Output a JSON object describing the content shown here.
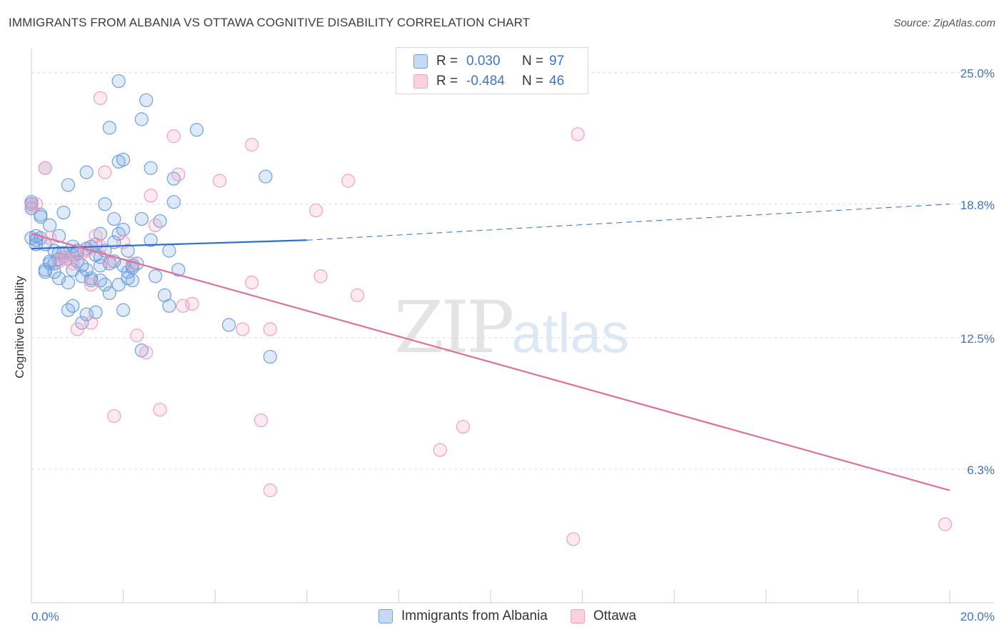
{
  "title": "IMMIGRANTS FROM ALBANIA VS OTTAWA COGNITIVE DISABILITY CORRELATION CHART",
  "source": "Source: ZipAtlas.com",
  "watermark": {
    "zip": "ZIP",
    "atlas": "atlas"
  },
  "legend": {
    "rows": [
      {
        "r_label": "R =",
        "r_value": "0.030",
        "n_label": "N =",
        "n_value": "97"
      },
      {
        "r_label": "R =",
        "r_value": "-0.484",
        "n_label": "N =",
        "n_value": "46"
      }
    ]
  },
  "bottom_legend": [
    "Immigrants from Albania",
    "Ottawa"
  ],
  "chart_data": {
    "type": "scatter",
    "title": "IMMIGRANTS FROM ALBANIA VS OTTAWA COGNITIVE DISABILITY CORRELATION CHART",
    "xlabel": "",
    "ylabel": "Cognitive Disability",
    "xlim": [
      0,
      20
    ],
    "ylim": [
      0,
      26
    ],
    "x_tick_labels": [
      "0.0%",
      "20.0%"
    ],
    "y_ticks": [
      6.3,
      12.5,
      18.8,
      25.0
    ],
    "y_tick_labels": [
      "6.3%",
      "12.5%",
      "18.8%",
      "25.0%"
    ],
    "grid": true,
    "legend_position": "top-center",
    "colors": {
      "blue": "#6f9fe0",
      "blue_line": "#2d6fce",
      "pink": "#f0a0bb",
      "pink_line": "#e0709a"
    },
    "series": [
      {
        "name": "Immigrants from Albania",
        "color": "#6f9fe0",
        "trend": {
          "x": [
            0,
            6
          ],
          "y": [
            16.7,
            17.1
          ],
          "dashed_to": [
            20,
            18.8
          ]
        },
        "points": [
          [
            0.0,
            18.9
          ],
          [
            0.0,
            18.8
          ],
          [
            0.1,
            17.3
          ],
          [
            0.1,
            17.1
          ],
          [
            0.2,
            18.2
          ],
          [
            0.3,
            20.5
          ],
          [
            0.4,
            17.8
          ],
          [
            0.5,
            16.6
          ],
          [
            0.6,
            16.2
          ],
          [
            0.7,
            16.5
          ],
          [
            0.5,
            15.6
          ],
          [
            0.3,
            15.6
          ],
          [
            0.4,
            16.0
          ],
          [
            0.6,
            15.3
          ],
          [
            0.8,
            15.1
          ],
          [
            0.9,
            16.8
          ],
          [
            1.0,
            16.5
          ],
          [
            1.1,
            15.9
          ],
          [
            1.2,
            15.7
          ],
          [
            1.3,
            15.3
          ],
          [
            1.4,
            16.4
          ],
          [
            1.5,
            15.9
          ],
          [
            1.6,
            15.0
          ],
          [
            1.7,
            16.0
          ],
          [
            1.8,
            17.0
          ],
          [
            1.9,
            17.4
          ],
          [
            2.0,
            15.9
          ],
          [
            2.1,
            15.3
          ],
          [
            2.2,
            15.2
          ],
          [
            2.3,
            16.0
          ],
          [
            2.6,
            17.1
          ],
          [
            2.7,
            15.4
          ],
          [
            0.8,
            19.7
          ],
          [
            0.7,
            18.4
          ],
          [
            1.2,
            20.3
          ],
          [
            1.5,
            17.4
          ],
          [
            1.6,
            18.8
          ],
          [
            1.8,
            18.1
          ],
          [
            1.9,
            20.8
          ],
          [
            2.1,
            16.6
          ],
          [
            2.2,
            15.8
          ],
          [
            2.4,
            18.1
          ],
          [
            2.6,
            20.5
          ],
          [
            2.8,
            18.0
          ],
          [
            3.1,
            18.9
          ],
          [
            3.0,
            16.6
          ],
          [
            3.2,
            15.7
          ],
          [
            1.7,
            14.6
          ],
          [
            1.9,
            15.0
          ],
          [
            2.0,
            13.8
          ],
          [
            1.4,
            13.7
          ],
          [
            1.2,
            13.6
          ],
          [
            0.9,
            14.0
          ],
          [
            0.8,
            13.8
          ],
          [
            1.1,
            13.2
          ],
          [
            1.5,
            15.2
          ],
          [
            2.5,
            23.7
          ],
          [
            2.4,
            22.8
          ],
          [
            1.7,
            22.4
          ],
          [
            1.9,
            24.6
          ],
          [
            3.6,
            22.3
          ],
          [
            2.0,
            20.9
          ],
          [
            3.1,
            20.0
          ],
          [
            5.1,
            20.1
          ],
          [
            2.4,
            11.9
          ],
          [
            3.0,
            14.0
          ],
          [
            2.9,
            14.5
          ],
          [
            4.3,
            13.1
          ],
          [
            5.2,
            11.6
          ],
          [
            2.1,
            15.6
          ],
          [
            0.3,
            16.9
          ],
          [
            1.0,
            16.1
          ],
          [
            0.2,
            17.2
          ],
          [
            0.1,
            16.9
          ],
          [
            0.9,
            15.7
          ],
          [
            1.3,
            16.8
          ],
          [
            1.6,
            16.6
          ],
          [
            2.0,
            17.6
          ],
          [
            0.6,
            17.3
          ],
          [
            0.4,
            16.1
          ],
          [
            0.7,
            16.3
          ],
          [
            1.1,
            15.4
          ],
          [
            1.8,
            16.1
          ],
          [
            0.5,
            16.0
          ],
          [
            1.0,
            16.6
          ],
          [
            0.8,
            16.2
          ],
          [
            1.4,
            16.9
          ],
          [
            2.2,
            15.9
          ],
          [
            0.3,
            15.7
          ],
          [
            0.9,
            16.4
          ],
          [
            1.2,
            16.7
          ],
          [
            0.6,
            16.5
          ],
          [
            1.5,
            16.3
          ],
          [
            0.2,
            18.3
          ],
          [
            0.0,
            17.2
          ],
          [
            0.0,
            18.6
          ],
          [
            1.3,
            15.2
          ]
        ]
      },
      {
        "name": "Ottawa",
        "color": "#f0a0bb",
        "trend": {
          "x": [
            0,
            20
          ],
          "y": [
            17.4,
            5.3
          ]
        },
        "points": [
          [
            0.0,
            18.7
          ],
          [
            0.1,
            18.8
          ],
          [
            0.3,
            20.5
          ],
          [
            0.4,
            17.2
          ],
          [
            0.7,
            16.3
          ],
          [
            0.9,
            16.0
          ],
          [
            1.1,
            16.5
          ],
          [
            1.4,
            17.3
          ],
          [
            1.3,
            15.0
          ],
          [
            1.5,
            16.8
          ],
          [
            1.7,
            16.1
          ],
          [
            2.0,
            17.0
          ],
          [
            2.2,
            16.0
          ],
          [
            2.7,
            17.8
          ],
          [
            1.5,
            23.8
          ],
          [
            1.6,
            20.3
          ],
          [
            2.6,
            19.2
          ],
          [
            3.2,
            20.2
          ],
          [
            3.1,
            22.0
          ],
          [
            4.1,
            19.9
          ],
          [
            4.8,
            21.6
          ],
          [
            6.2,
            18.5
          ],
          [
            6.9,
            19.9
          ],
          [
            3.3,
            14.0
          ],
          [
            3.5,
            14.1
          ],
          [
            4.8,
            15.1
          ],
          [
            5.2,
            12.9
          ],
          [
            4.6,
            12.9
          ],
          [
            6.3,
            15.4
          ],
          [
            7.1,
            14.5
          ],
          [
            1.0,
            12.9
          ],
          [
            1.3,
            13.2
          ],
          [
            2.3,
            12.6
          ],
          [
            2.5,
            11.8
          ],
          [
            1.8,
            8.8
          ],
          [
            2.8,
            9.1
          ],
          [
            5.0,
            8.6
          ],
          [
            9.4,
            8.3
          ],
          [
            8.9,
            7.2
          ],
          [
            5.2,
            5.3
          ],
          [
            11.9,
            22.1
          ],
          [
            11.8,
            3.0
          ],
          [
            19.9,
            3.7
          ],
          [
            0.6,
            16.1
          ],
          [
            1.2,
            16.6
          ],
          [
            0.8,
            16.2
          ]
        ]
      }
    ]
  }
}
